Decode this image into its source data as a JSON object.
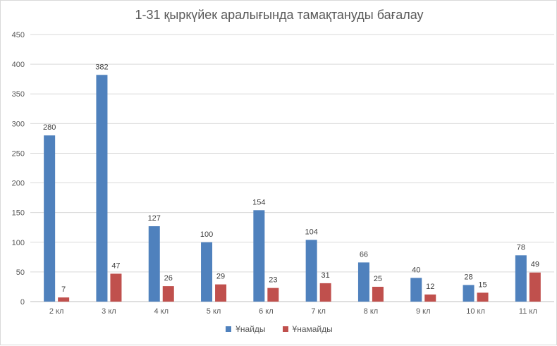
{
  "chart_data": {
    "type": "bar",
    "title": "1-31 қыркүйек аралығында тамақтануды бағалау",
    "categories": [
      "2 кл",
      "3 кл",
      "4 кл",
      "5 кл",
      "6 кл",
      "7 кл",
      "8 кл",
      "9 кл",
      "10 кл",
      "11 кл"
    ],
    "series": [
      {
        "name": "Ұнайды",
        "color": "#4f81bd",
        "values": [
          280,
          382,
          127,
          100,
          154,
          104,
          66,
          40,
          28,
          78
        ]
      },
      {
        "name": "Ұнамайды",
        "color": "#c0504d",
        "values": [
          7,
          47,
          26,
          29,
          23,
          31,
          25,
          12,
          15,
          49
        ]
      }
    ],
    "ylim": [
      0,
      450
    ],
    "yticks": [
      0,
      50,
      100,
      150,
      200,
      250,
      300,
      350,
      400,
      450
    ],
    "grid": true,
    "legend": "bottom"
  }
}
